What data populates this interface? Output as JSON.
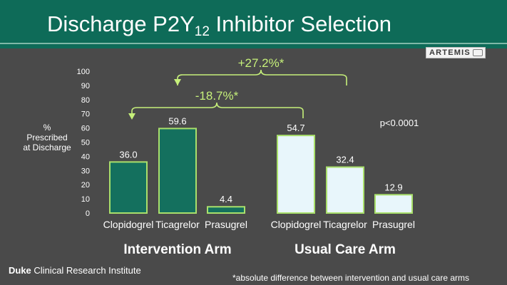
{
  "slide": {
    "title_main": "Discharge P2Y",
    "title_sub": "12",
    "title_rest": " Inhibitor Selection",
    "logo_text": "ARTEMIS",
    "footer_org_bold": "Duke",
    "footer_org_rest": " Clinical Research Institute",
    "footnote": "*absolute difference between intervention and usual care arms"
  },
  "colors": {
    "header_bg": "#0e6b58",
    "slide_bg": "#4a4a4a",
    "intervention_bar": "#14705e",
    "usual_care_bar": "#e8f6fb",
    "bar_outline": "#a9e06b",
    "annotation": "#c6f07a"
  },
  "chart_data": {
    "type": "bar",
    "ylabel": "% Prescribed at Discharge",
    "ylim": [
      0,
      100
    ],
    "yticks": [
      0,
      10,
      20,
      30,
      40,
      50,
      60,
      70,
      80,
      90,
      100
    ],
    "grid": false,
    "groups": [
      {
        "name": "Intervention Arm",
        "categories": [
          "Clopidogrel",
          "Ticagrelor",
          "Prasugrel"
        ],
        "values": [
          36.0,
          59.6,
          4.4
        ],
        "labels": [
          "36.0",
          "59.6",
          "4.4"
        ]
      },
      {
        "name": "Usual Care Arm",
        "categories": [
          "Clopidogrel",
          "Ticagrelor",
          "Prasugrel"
        ],
        "values": [
          54.7,
          32.4,
          12.9
        ],
        "labels": [
          "54.7",
          "32.4",
          "12.9"
        ]
      }
    ],
    "annotations": {
      "ticagrelor_difference": "+27.2%*",
      "clopidogrel_difference": "-18.7%*",
      "p_value": "p<0.0001"
    }
  }
}
